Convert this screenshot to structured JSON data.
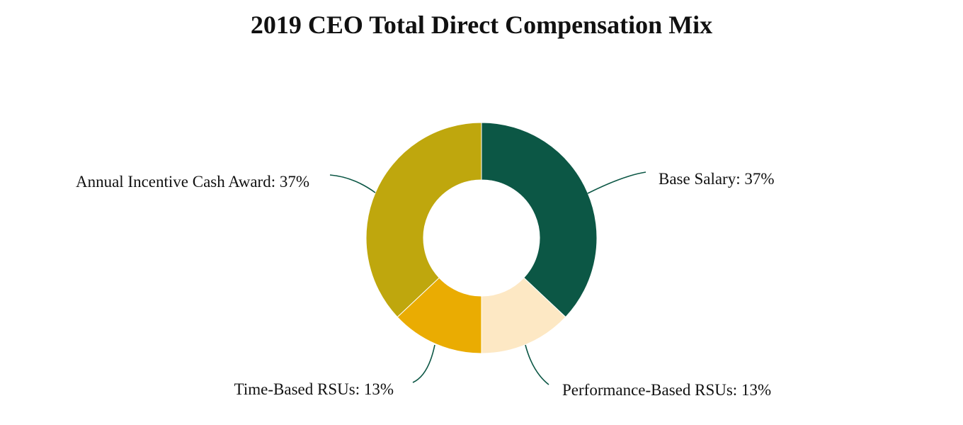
{
  "chart_data": {
    "type": "pie",
    "title": "2019 CEO Total Direct Compensation Mix",
    "donut": true,
    "slices": [
      {
        "name": "Base Salary",
        "value": 37,
        "color": "#0C5745",
        "label": "Base Salary: 37%"
      },
      {
        "name": "Performance-Based RSUs",
        "value": 13,
        "color": "#FDE8C4",
        "label": "Performance-Based RSUs: 13%"
      },
      {
        "name": "Time-Based RSUs",
        "value": 13,
        "color": "#EAAC02",
        "label": "Time-Based RSUs: 13%"
      },
      {
        "name": "Annual Incentive Cash Award",
        "value": 37,
        "color": "#BFA70D",
        "label": "Annual Incentive Cash Award: 37%"
      }
    ],
    "leader_line_color": "#0C5745"
  }
}
